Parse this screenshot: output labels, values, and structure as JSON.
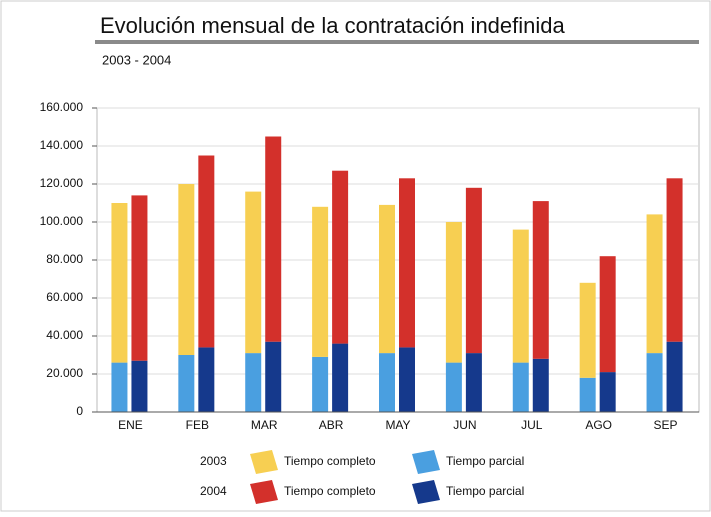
{
  "chart_data": {
    "type": "stacked_grouped_bar",
    "title": "Evolución mensual de la contratación indefinida",
    "subtitle": "2003 - 2004",
    "categories": [
      "ENE",
      "FEB",
      "MAR",
      "ABR",
      "MAY",
      "JUN",
      "JUL",
      "AGO",
      "SEP"
    ],
    "series": [
      {
        "name": "Tiempo parcial",
        "stack": "2003",
        "color": "#4a9fe0",
        "values": [
          26000,
          30000,
          31000,
          29000,
          31000,
          26000,
          26000,
          18000,
          31000
        ]
      },
      {
        "name": "Tiempo completo",
        "stack": "2003",
        "color": "#f7cf52",
        "values": [
          84000,
          90000,
          85000,
          79000,
          78000,
          74000,
          70000,
          50000,
          73000
        ]
      },
      {
        "name": "Tiempo parcial",
        "stack": "2004",
        "color": "#15398c",
        "values": [
          27000,
          34000,
          37000,
          36000,
          34000,
          31000,
          28000,
          21000,
          37000
        ]
      },
      {
        "name": "Tiempo completo",
        "stack": "2004",
        "color": "#d3302b",
        "values": [
          87000,
          101000,
          108000,
          91000,
          89000,
          87000,
          83000,
          61000,
          86000
        ]
      }
    ],
    "ylim": [
      0,
      160000
    ],
    "yticks": [
      0,
      {
        "value": 20000,
        "label": "20.000"
      },
      {
        "value": 40000,
        "label": "40.000"
      },
      {
        "value": 60000,
        "label": "60.000"
      },
      {
        "value": 80000,
        "label": "80.000"
      },
      {
        "value": 100000,
        "label": "100.000"
      },
      {
        "value": 120000,
        "label": "120.000"
      },
      {
        "value": 140000,
        "label": "140.000"
      },
      {
        "value": 160000,
        "label": "160.000"
      }
    ],
    "grid": true
  }
}
